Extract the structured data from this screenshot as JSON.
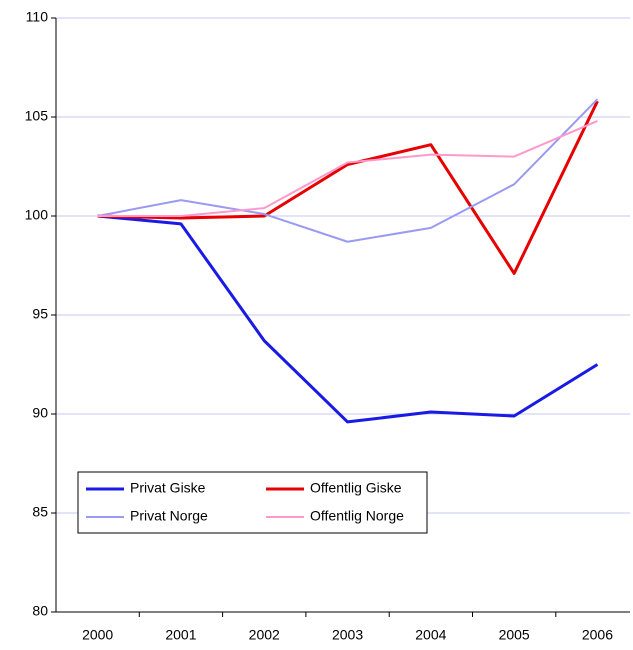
{
  "chart_data": {
    "type": "line",
    "categories": [
      "2000",
      "2001",
      "2002",
      "2003",
      "2004",
      "2005",
      "2006"
    ],
    "series": [
      {
        "name": "Privat Giske",
        "color": "#1a1ae6",
        "values": [
          100,
          99.6,
          93.7,
          89.6,
          90.1,
          89.9,
          92.5
        ]
      },
      {
        "name": "Offentlig Giske",
        "color": "#e60000",
        "values": [
          100,
          99.9,
          100.0,
          102.6,
          103.6,
          97.1,
          105.8
        ]
      },
      {
        "name": "Privat Norge",
        "color": "#9a9af2",
        "values": [
          100,
          100.8,
          100.1,
          98.7,
          99.4,
          101.6,
          105.9
        ]
      },
      {
        "name": "Offentlig Norge",
        "color": "#ff99cc",
        "values": [
          100,
          100.0,
          100.4,
          102.7,
          103.1,
          103.0,
          104.8
        ]
      }
    ],
    "ylim": [
      80,
      110
    ],
    "yticks": [
      80,
      85,
      90,
      95,
      100,
      105,
      110
    ],
    "grid": true,
    "legend": "lower left"
  }
}
